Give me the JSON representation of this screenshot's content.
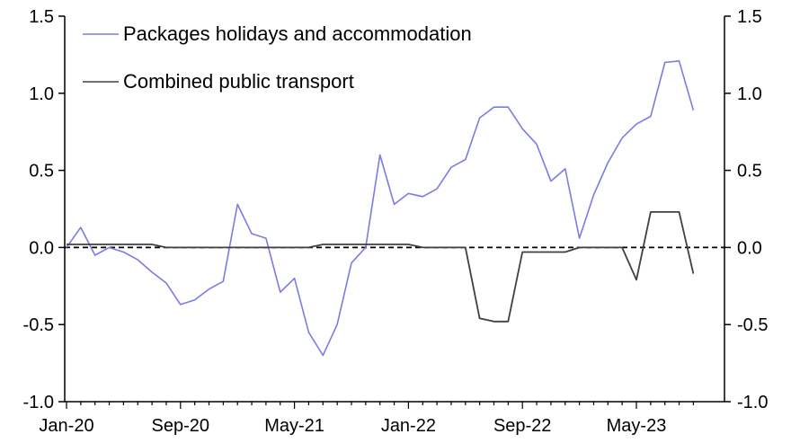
{
  "chart_data": {
    "type": "line",
    "title": "",
    "xlabel": "",
    "ylabel": "",
    "ylim": [
      -1.0,
      1.5
    ],
    "y_ticks": [
      "1.5",
      "1.0",
      "0.5",
      "0.0",
      "-0.5",
      "-1.0"
    ],
    "y_ticks_right": [
      "1.5",
      "1.0",
      "0.5",
      "0.0",
      "-0.5",
      "-1.0"
    ],
    "x_tick_labels": [
      "Jan-20",
      "Sep-20",
      "May-21",
      "Jan-22",
      "Sep-22",
      "May-23"
    ],
    "x_tick_months": [
      0,
      8,
      16,
      24,
      32,
      40
    ],
    "reference_line": 0,
    "legend_position": "top-left",
    "grid": false,
    "series": [
      {
        "name": "Packages holidays and accommodation",
        "color": "#7b7be6",
        "values": [
          0.0,
          0.13,
          -0.05,
          0.0,
          -0.03,
          -0.08,
          -0.16,
          -0.23,
          -0.37,
          -0.34,
          -0.27,
          -0.22,
          0.28,
          0.09,
          0.06,
          -0.29,
          -0.2,
          -0.55,
          -0.7,
          -0.5,
          -0.1,
          0.0,
          0.6,
          0.28,
          0.35,
          0.33,
          0.38,
          0.52,
          0.57,
          0.84,
          0.91,
          0.91,
          0.77,
          0.67,
          0.43,
          0.51,
          0.06,
          0.34,
          0.55,
          0.71,
          0.8,
          0.85,
          1.2,
          1.21,
          0.89
        ]
      },
      {
        "name": "Combined public transport",
        "color": "#404040",
        "values": [
          0.02,
          0.02,
          0.02,
          0.02,
          0.02,
          0.02,
          0.02,
          0.0,
          0.0,
          0.0,
          0.0,
          0.0,
          0.0,
          0.0,
          0.0,
          0.0,
          0.0,
          0.0,
          0.02,
          0.02,
          0.02,
          0.02,
          0.02,
          0.02,
          0.02,
          0.0,
          0.0,
          0.0,
          0.0,
          -0.46,
          -0.48,
          -0.48,
          -0.03,
          -0.03,
          -0.03,
          -0.03,
          0.0,
          0.0,
          0.0,
          0.0,
          -0.21,
          0.23,
          0.23,
          0.23,
          -0.17
        ]
      }
    ]
  }
}
